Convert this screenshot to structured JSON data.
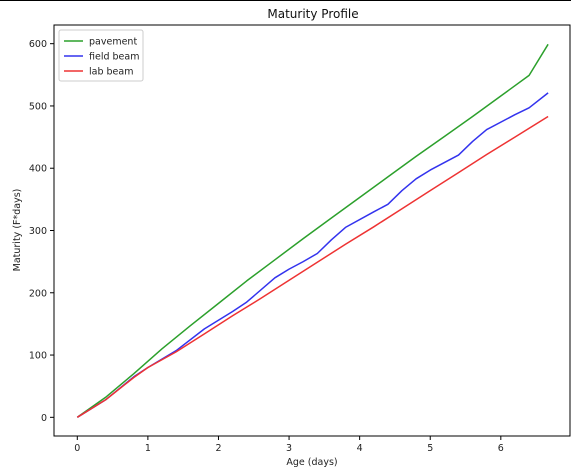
{
  "chart_data": {
    "type": "line",
    "title": "Maturity Profile",
    "xlabel": "Age (days)",
    "ylabel": "Maturity (F*days)",
    "xlim": [
      -0.33,
      6.98
    ],
    "ylim": [
      -30,
      630
    ],
    "xticks": [
      0,
      1,
      2,
      3,
      4,
      5,
      6
    ],
    "yticks": [
      0,
      100,
      200,
      300,
      400,
      500,
      600
    ],
    "grid": false,
    "legend_position": "upper-left",
    "series": [
      {
        "name": "pavement",
        "color": "#2ca02c",
        "x": [
          0,
          0.4,
          0.8,
          1.2,
          1.6,
          2.0,
          2.4,
          2.8,
          3.2,
          3.6,
          4.0,
          4.4,
          4.8,
          5.2,
          5.6,
          6.0,
          6.4,
          6.67
        ],
        "y": [
          0,
          32,
          70,
          110,
          147,
          183,
          219,
          253,
          287,
          320,
          353,
          386,
          419,
          451,
          483,
          516,
          549,
          599
        ]
      },
      {
        "name": "field beam",
        "color": "#3333ee",
        "x": [
          0,
          0.4,
          0.8,
          1.0,
          1.4,
          1.8,
          2.2,
          2.4,
          2.8,
          3.0,
          3.2,
          3.4,
          3.6,
          3.8,
          4.2,
          4.4,
          4.6,
          4.8,
          5.0,
          5.4,
          5.6,
          5.8,
          6.2,
          6.4,
          6.67
        ],
        "y": [
          0,
          28,
          65,
          80,
          107,
          142,
          170,
          185,
          224,
          238,
          250,
          263,
          285,
          305,
          330,
          342,
          364,
          383,
          397,
          421,
          443,
          462,
          486,
          497,
          521
        ]
      },
      {
        "name": "lab beam",
        "color": "#ee3333",
        "x": [
          0,
          0.4,
          0.8,
          1.0,
          1.4,
          1.8,
          2.2,
          2.6,
          3.0,
          3.4,
          3.8,
          4.2,
          4.6,
          5.0,
          5.4,
          5.8,
          6.2,
          6.67
        ],
        "y": [
          0,
          28,
          64,
          80,
          105,
          134,
          163,
          191,
          220,
          249,
          278,
          306,
          335,
          364,
          393,
          422,
          450,
          483
        ]
      }
    ]
  }
}
